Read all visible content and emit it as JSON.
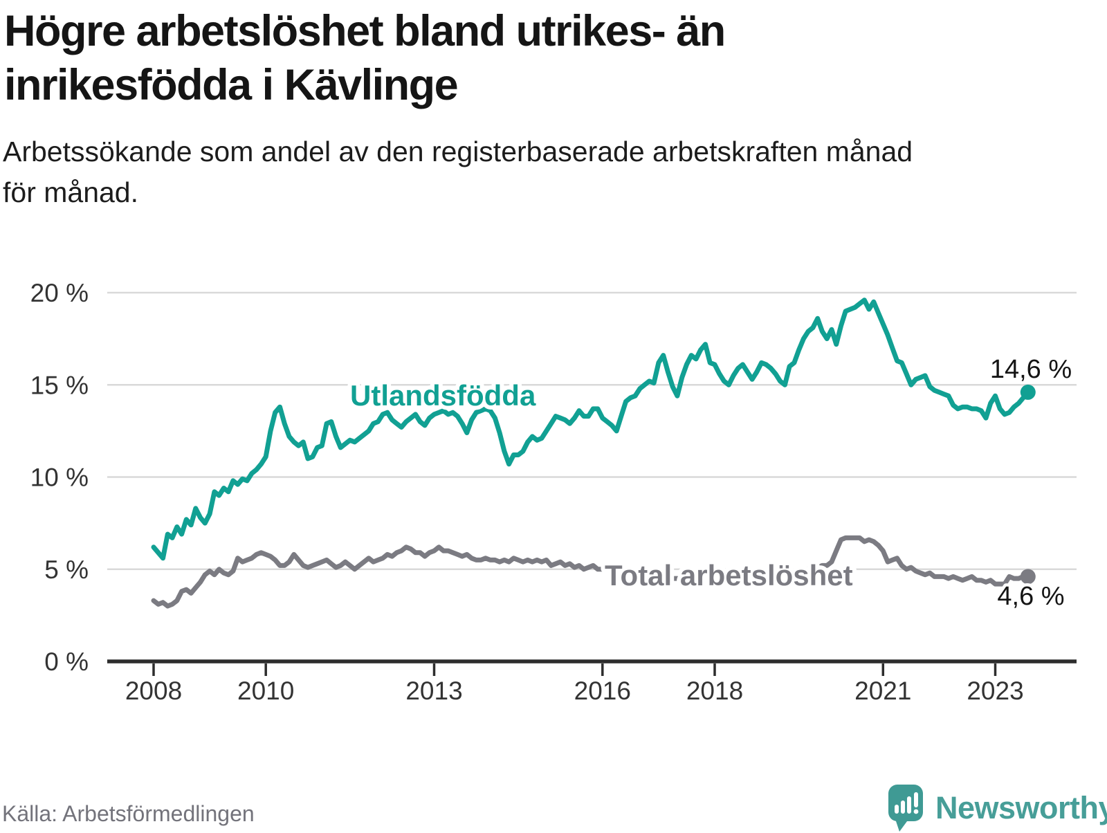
{
  "title_line1": "Högre arbetslöshet bland utrikes- än",
  "title_line2": "inrikesfödda i Kävlinge",
  "subtitle_line1": "Arbetssökande som andel av den registerbaserade arbetskraften månad",
  "subtitle_line2": "för månad.",
  "source": "Källa: Arbetsförmedlingen",
  "branding": {
    "name": "Newsworthy",
    "logo_icon": "speech-bubble-bar-chart",
    "color": "#479e98",
    "bubble_color": "#3f9a94"
  },
  "chart_data": {
    "type": "line",
    "frequency": "monthly",
    "start_year": 2008,
    "x_start": "2008-01",
    "x_end": "2023-08",
    "ylim": [
      0,
      20
    ],
    "grid": "horizontal",
    "legend_position": "inline-labels",
    "y_ticks": [
      {
        "label": "0 %",
        "value": 0
      },
      {
        "label": "5 %",
        "value": 5
      },
      {
        "label": "10 %",
        "value": 10
      },
      {
        "label": "15 %",
        "value": 15
      },
      {
        "label": "20 %",
        "value": 20
      }
    ],
    "x_ticks": [
      {
        "label": "2008",
        "year": 2008
      },
      {
        "label": "2010",
        "year": 2010
      },
      {
        "label": "2013",
        "year": 2013
      },
      {
        "label": "2016",
        "year": 2016
      },
      {
        "label": "2018",
        "year": 2018
      },
      {
        "label": "2021",
        "year": 2021
      },
      {
        "label": "2023",
        "year": 2023
      }
    ],
    "series": [
      {
        "name": "Utlandsfödda",
        "label": "Utlandsfödda",
        "end_label": "14,6 %",
        "last_value": 14.6,
        "color": "#11a093",
        "values": [
          6.2,
          5.9,
          5.6,
          6.9,
          6.7,
          7.3,
          6.9,
          7.7,
          7.4,
          8.3,
          7.8,
          7.5,
          8.0,
          9.2,
          9.0,
          9.4,
          9.2,
          9.8,
          9.6,
          9.9,
          9.8,
          10.2,
          10.4,
          10.7,
          11.1,
          12.5,
          13.5,
          13.8,
          12.9,
          12.2,
          11.9,
          11.7,
          11.9,
          11.0,
          11.1,
          11.6,
          11.7,
          12.9,
          13.0,
          12.2,
          11.6,
          11.8,
          12.0,
          11.9,
          12.1,
          12.3,
          12.5,
          12.9,
          13.0,
          13.4,
          13.5,
          13.1,
          12.9,
          12.7,
          13.0,
          13.2,
          13.4,
          13.0,
          12.8,
          13.2,
          13.4,
          13.5,
          13.6,
          13.4,
          13.5,
          13.3,
          12.9,
          12.4,
          13.1,
          13.5,
          13.6,
          13.7,
          13.6,
          13.2,
          12.4,
          11.4,
          10.7,
          11.2,
          11.2,
          11.4,
          11.9,
          12.2,
          12.0,
          12.1,
          12.5,
          12.9,
          13.3,
          13.2,
          13.1,
          12.9,
          13.2,
          13.6,
          13.3,
          13.3,
          13.7,
          13.7,
          13.2,
          13.0,
          12.8,
          12.5,
          13.3,
          14.1,
          14.3,
          14.4,
          14.8,
          15.0,
          15.2,
          15.1,
          16.2,
          16.6,
          15.7,
          14.9,
          14.4,
          15.4,
          16.1,
          16.6,
          16.4,
          16.9,
          17.2,
          16.2,
          16.1,
          15.6,
          15.2,
          15.0,
          15.5,
          15.9,
          16.1,
          15.7,
          15.3,
          15.7,
          16.2,
          16.1,
          15.9,
          15.6,
          15.2,
          15.0,
          16.0,
          16.2,
          16.9,
          17.5,
          17.9,
          18.1,
          18.6,
          17.9,
          17.5,
          18.0,
          17.2,
          18.2,
          19.0,
          19.1,
          19.2,
          19.4,
          19.6,
          19.1,
          19.5,
          18.9,
          18.3,
          17.7,
          17.0,
          16.3,
          16.2,
          15.6,
          15.0,
          15.3,
          15.4,
          15.5,
          14.9,
          14.7,
          14.6,
          14.5,
          14.4,
          13.9,
          13.7,
          13.8,
          13.8,
          13.7,
          13.7,
          13.6,
          13.2,
          14.0,
          14.4,
          13.7,
          13.4,
          13.5,
          13.8,
          14.0,
          14.3,
          14.6
        ]
      },
      {
        "name": "Total arbetslöshet",
        "label": "Total arbetslöshet",
        "end_label": "4,6 %",
        "last_value": 4.6,
        "color": "#7b7b82",
        "values": [
          3.3,
          3.1,
          3.2,
          3.0,
          3.1,
          3.3,
          3.8,
          3.9,
          3.7,
          4.0,
          4.3,
          4.7,
          4.9,
          4.7,
          5.0,
          4.8,
          4.7,
          4.9,
          5.6,
          5.4,
          5.5,
          5.6,
          5.8,
          5.9,
          5.8,
          5.7,
          5.5,
          5.2,
          5.2,
          5.4,
          5.8,
          5.5,
          5.2,
          5.1,
          5.2,
          5.3,
          5.4,
          5.5,
          5.3,
          5.1,
          5.2,
          5.4,
          5.2,
          5.0,
          5.2,
          5.4,
          5.6,
          5.4,
          5.5,
          5.6,
          5.8,
          5.7,
          5.9,
          6.0,
          6.2,
          6.1,
          5.9,
          5.9,
          5.7,
          5.9,
          6.0,
          6.2,
          6.0,
          6.0,
          5.9,
          5.8,
          5.7,
          5.8,
          5.6,
          5.5,
          5.5,
          5.6,
          5.5,
          5.5,
          5.4,
          5.5,
          5.4,
          5.6,
          5.5,
          5.4,
          5.5,
          5.4,
          5.5,
          5.4,
          5.5,
          5.2,
          5.3,
          5.4,
          5.2,
          5.3,
          5.1,
          5.2,
          5.0,
          5.1,
          5.2,
          5.0,
          5.0,
          5.0,
          4.9,
          4.9,
          4.8,
          4.8,
          4.8,
          4.7,
          4.7,
          4.7,
          4.6,
          4.6,
          4.6,
          4.6,
          4.6,
          4.5,
          4.5,
          4.5,
          4.4,
          4.5,
          4.5,
          4.6,
          4.6,
          4.6,
          4.6,
          4.5,
          4.5,
          4.5,
          4.4,
          4.5,
          4.6,
          4.5,
          4.6,
          4.6,
          4.7,
          4.7,
          4.7,
          4.8,
          4.8,
          4.8,
          4.9,
          4.9,
          5.0,
          5.0,
          5.0,
          5.1,
          5.1,
          5.2,
          5.2,
          5.4,
          6.0,
          6.6,
          6.7,
          6.7,
          6.7,
          6.7,
          6.5,
          6.6,
          6.5,
          6.3,
          6.0,
          5.4,
          5.5,
          5.6,
          5.2,
          5.0,
          5.1,
          4.9,
          4.8,
          4.7,
          4.8,
          4.6,
          4.6,
          4.6,
          4.5,
          4.6,
          4.5,
          4.4,
          4.5,
          4.6,
          4.4,
          4.4,
          4.3,
          4.4,
          4.2,
          4.2,
          4.2,
          4.6,
          4.5,
          4.5,
          4.6,
          4.6
        ]
      }
    ]
  }
}
